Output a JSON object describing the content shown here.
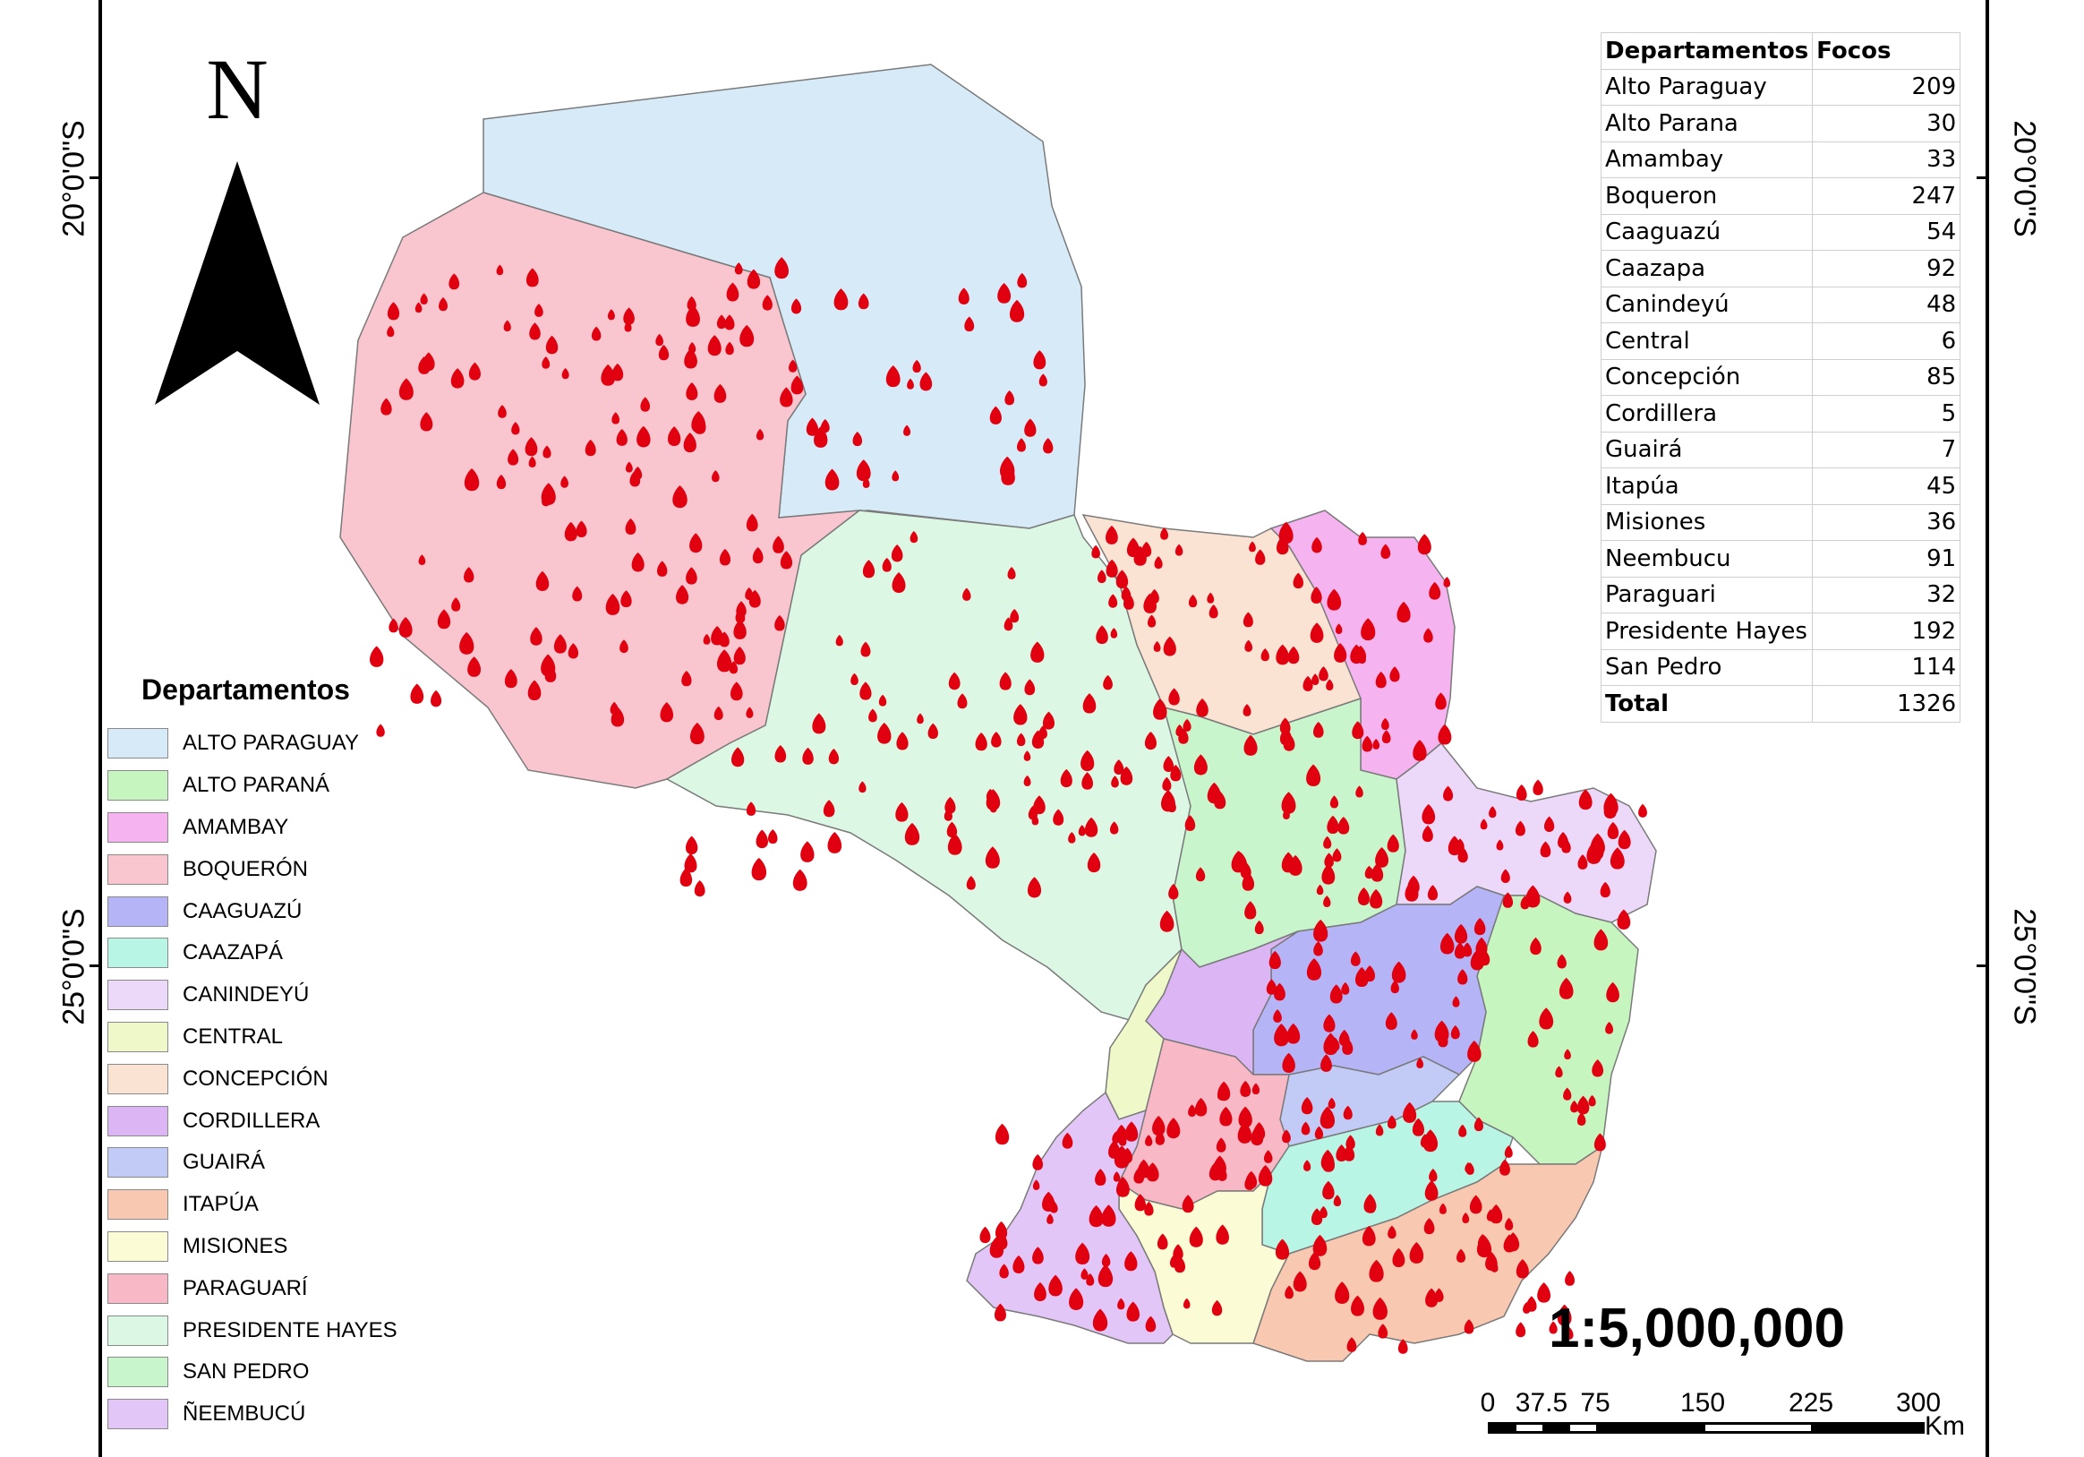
{
  "north_arrow": {
    "letter": "N"
  },
  "coordinates": {
    "left": [
      "20°0'0\"S",
      "25°0'0\"S"
    ],
    "right": [
      "20°0'0\"S",
      "25°0'0\"S"
    ]
  },
  "legend": {
    "title": "Departamentos",
    "items": [
      {
        "label": "ALTO PARAGUAY",
        "color": "#d6eaf8"
      },
      {
        "label": "ALTO PARANÁ",
        "color": "#c7f5c0"
      },
      {
        "label": "AMAMBAY",
        "color": "#f5b3ef"
      },
      {
        "label": "BOQUERÓN",
        "color": "#f9c6cf"
      },
      {
        "label": "CAAGUAZÚ",
        "color": "#b4b4f7"
      },
      {
        "label": "CAAZAPÁ",
        "color": "#b8f5e4"
      },
      {
        "label": "CANINDEYÚ",
        "color": "#ecd9f9"
      },
      {
        "label": "CENTRAL",
        "color": "#eef8c8"
      },
      {
        "label": "CONCEPCIÓN",
        "color": "#fbe3d3"
      },
      {
        "label": "CORDILLERA",
        "color": "#dcb5f5"
      },
      {
        "label": "GUAIRÁ",
        "color": "#c2cbf5"
      },
      {
        "label": "ITAPÚA",
        "color": "#f9c8b0"
      },
      {
        "label": "MISIONES",
        "color": "#fbfbd5"
      },
      {
        "label": "PARAGUARÍ",
        "color": "#f9b8c5"
      },
      {
        "label": "PRESIDENTE HAYES",
        "color": "#dcf7e4"
      },
      {
        "label": "SAN PEDRO",
        "color": "#c9f5cd"
      },
      {
        "label": "ÑEEMBUCÚ",
        "color": "#e2c6f7"
      }
    ]
  },
  "table": {
    "headers": [
      "Departamentos",
      "Focos"
    ],
    "rows": [
      {
        "name": "Alto Paraguay",
        "focos": "209"
      },
      {
        "name": "Alto Parana",
        "focos": "30"
      },
      {
        "name": "Amambay",
        "focos": "33"
      },
      {
        "name": "Boqueron",
        "focos": "247"
      },
      {
        "name": "Caaguazú",
        "focos": "54"
      },
      {
        "name": "Caazapa",
        "focos": "92"
      },
      {
        "name": "Canindeyú",
        "focos": "48"
      },
      {
        "name": "Central",
        "focos": "6"
      },
      {
        "name": "Concepción",
        "focos": "85"
      },
      {
        "name": "Cordillera",
        "focos": "5"
      },
      {
        "name": "Guairá",
        "focos": "7"
      },
      {
        "name": "Itapúa",
        "focos": "45"
      },
      {
        "name": "Misiones",
        "focos": "36"
      },
      {
        "name": "Neembucu",
        "focos": "91"
      },
      {
        "name": "Paraguari",
        "focos": "32"
      },
      {
        "name": "Presidente Hayes",
        "focos": "192"
      },
      {
        "name": "San Pedro",
        "focos": "114"
      }
    ],
    "total_label": "Total",
    "total_value": "1326"
  },
  "scale": {
    "ratio": "1:5,000,000",
    "labels": [
      "0",
      "37.5",
      "75",
      "150",
      "225",
      "300"
    ],
    "unit": "Km"
  },
  "colors": {
    "fire_point": "#e0000f",
    "border": "#7a7a7a"
  }
}
